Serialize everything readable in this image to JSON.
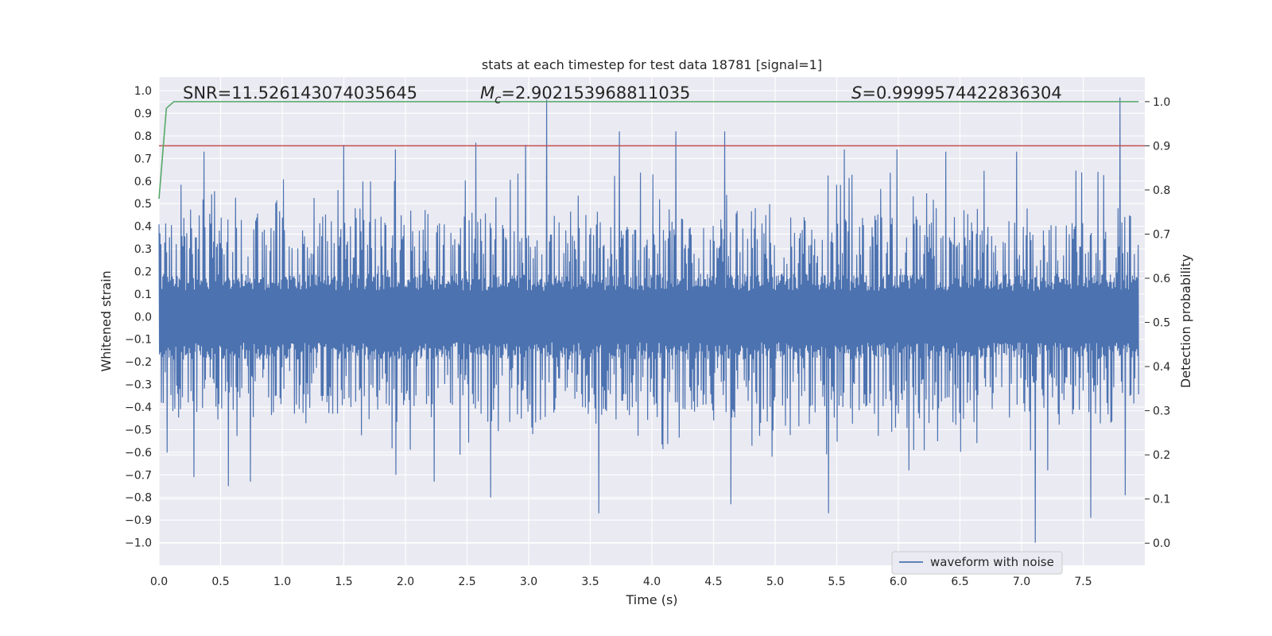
{
  "chart_data": {
    "type": "line",
    "title": "stats at each timestep for test data 18781 [signal=1]",
    "xlabel": "Time (s)",
    "ylabel_left": "Whitened strain",
    "ylabel_right": "Detection probability",
    "xlim": [
      0.0,
      8.0
    ],
    "ylim_left": [
      -1.1,
      1.06
    ],
    "ylim_right": [
      -0.05,
      1.0556
    ],
    "x_ticks": [
      "0.0",
      "0.5",
      "1.0",
      "1.5",
      "2.0",
      "2.5",
      "3.0",
      "3.5",
      "4.0",
      "4.5",
      "5.0",
      "5.5",
      "6.0",
      "6.5",
      "7.0",
      "7.5"
    ],
    "y_ticks_left": [
      "1.0",
      "0.9",
      "0.8",
      "0.7",
      "0.6",
      "0.5",
      "0.4",
      "0.3",
      "0.2",
      "0.1",
      "0.0",
      "−0.1",
      "−0.2",
      "−0.3",
      "−0.4",
      "−0.5",
      "−0.6",
      "−0.7",
      "−0.8",
      "−0.9",
      "−1.0"
    ],
    "y_ticks_right": [
      "1.0",
      "0.9",
      "0.8",
      "0.7",
      "0.6",
      "0.5",
      "0.4",
      "0.3",
      "0.2",
      "0.1",
      "0.0"
    ],
    "annotations": {
      "snr": "SNR=11.526143074035645",
      "mc_symbol": "M",
      "mc_sub": "c",
      "mc_value": "=2.902153968811035",
      "s_symbol": "S",
      "s_value": "=0.9999574422836304"
    },
    "legend": {
      "label": "waveform with noise",
      "placement": "lower-right"
    },
    "threshold": {
      "name": "threshold",
      "value": 0.9,
      "axis": "right",
      "color": "#c44e52"
    },
    "series": [
      {
        "name": "detection probability",
        "axis": "right",
        "color": "#55a868",
        "x": [
          0.0,
          0.06,
          0.12,
          0.25,
          7.95
        ],
        "y": [
          0.78,
          0.985,
          1.0,
          1.0,
          1.0
        ]
      },
      {
        "name": "waveform with noise",
        "axis": "left",
        "color": "#4c72b0",
        "n_samples": 2048,
        "envelope_upper": 0.37,
        "envelope_lower": -0.38,
        "band_upper": 0.19,
        "band_lower": -0.2,
        "peaks": [
          {
            "x": 3.15,
            "y": 0.96
          },
          {
            "x": 7.8,
            "y": 0.97
          },
          {
            "x": 3.74,
            "y": 0.82
          },
          {
            "x": 4.2,
            "y": 0.82
          },
          {
            "x": 4.59,
            "y": 0.82
          },
          {
            "x": 1.5,
            "y": 0.76
          },
          {
            "x": 2.57,
            "y": 0.77
          },
          {
            "x": 2.98,
            "y": 0.76
          },
          {
            "x": 0.37,
            "y": 0.73
          },
          {
            "x": 1.92,
            "y": 0.74
          },
          {
            "x": 5.56,
            "y": 0.74
          },
          {
            "x": 5.99,
            "y": 0.74
          },
          {
            "x": 6.39,
            "y": 0.73
          },
          {
            "x": 6.96,
            "y": 0.73
          }
        ],
        "troughs": [
          {
            "x": 7.11,
            "y": -1.0
          },
          {
            "x": 7.56,
            "y": -0.89
          },
          {
            "x": 5.43,
            "y": -0.87
          },
          {
            "x": 3.57,
            "y": -0.87
          },
          {
            "x": 4.64,
            "y": -0.83
          },
          {
            "x": 2.69,
            "y": -0.8
          },
          {
            "x": 7.84,
            "y": -0.79
          },
          {
            "x": 0.56,
            "y": -0.75
          },
          {
            "x": 0.74,
            "y": -0.73
          },
          {
            "x": 0.28,
            "y": -0.71
          },
          {
            "x": 2.23,
            "y": -0.73
          },
          {
            "x": 1.92,
            "y": -0.7
          },
          {
            "x": 6.08,
            "y": -0.68
          },
          {
            "x": 7.21,
            "y": -0.68
          }
        ]
      }
    ]
  }
}
